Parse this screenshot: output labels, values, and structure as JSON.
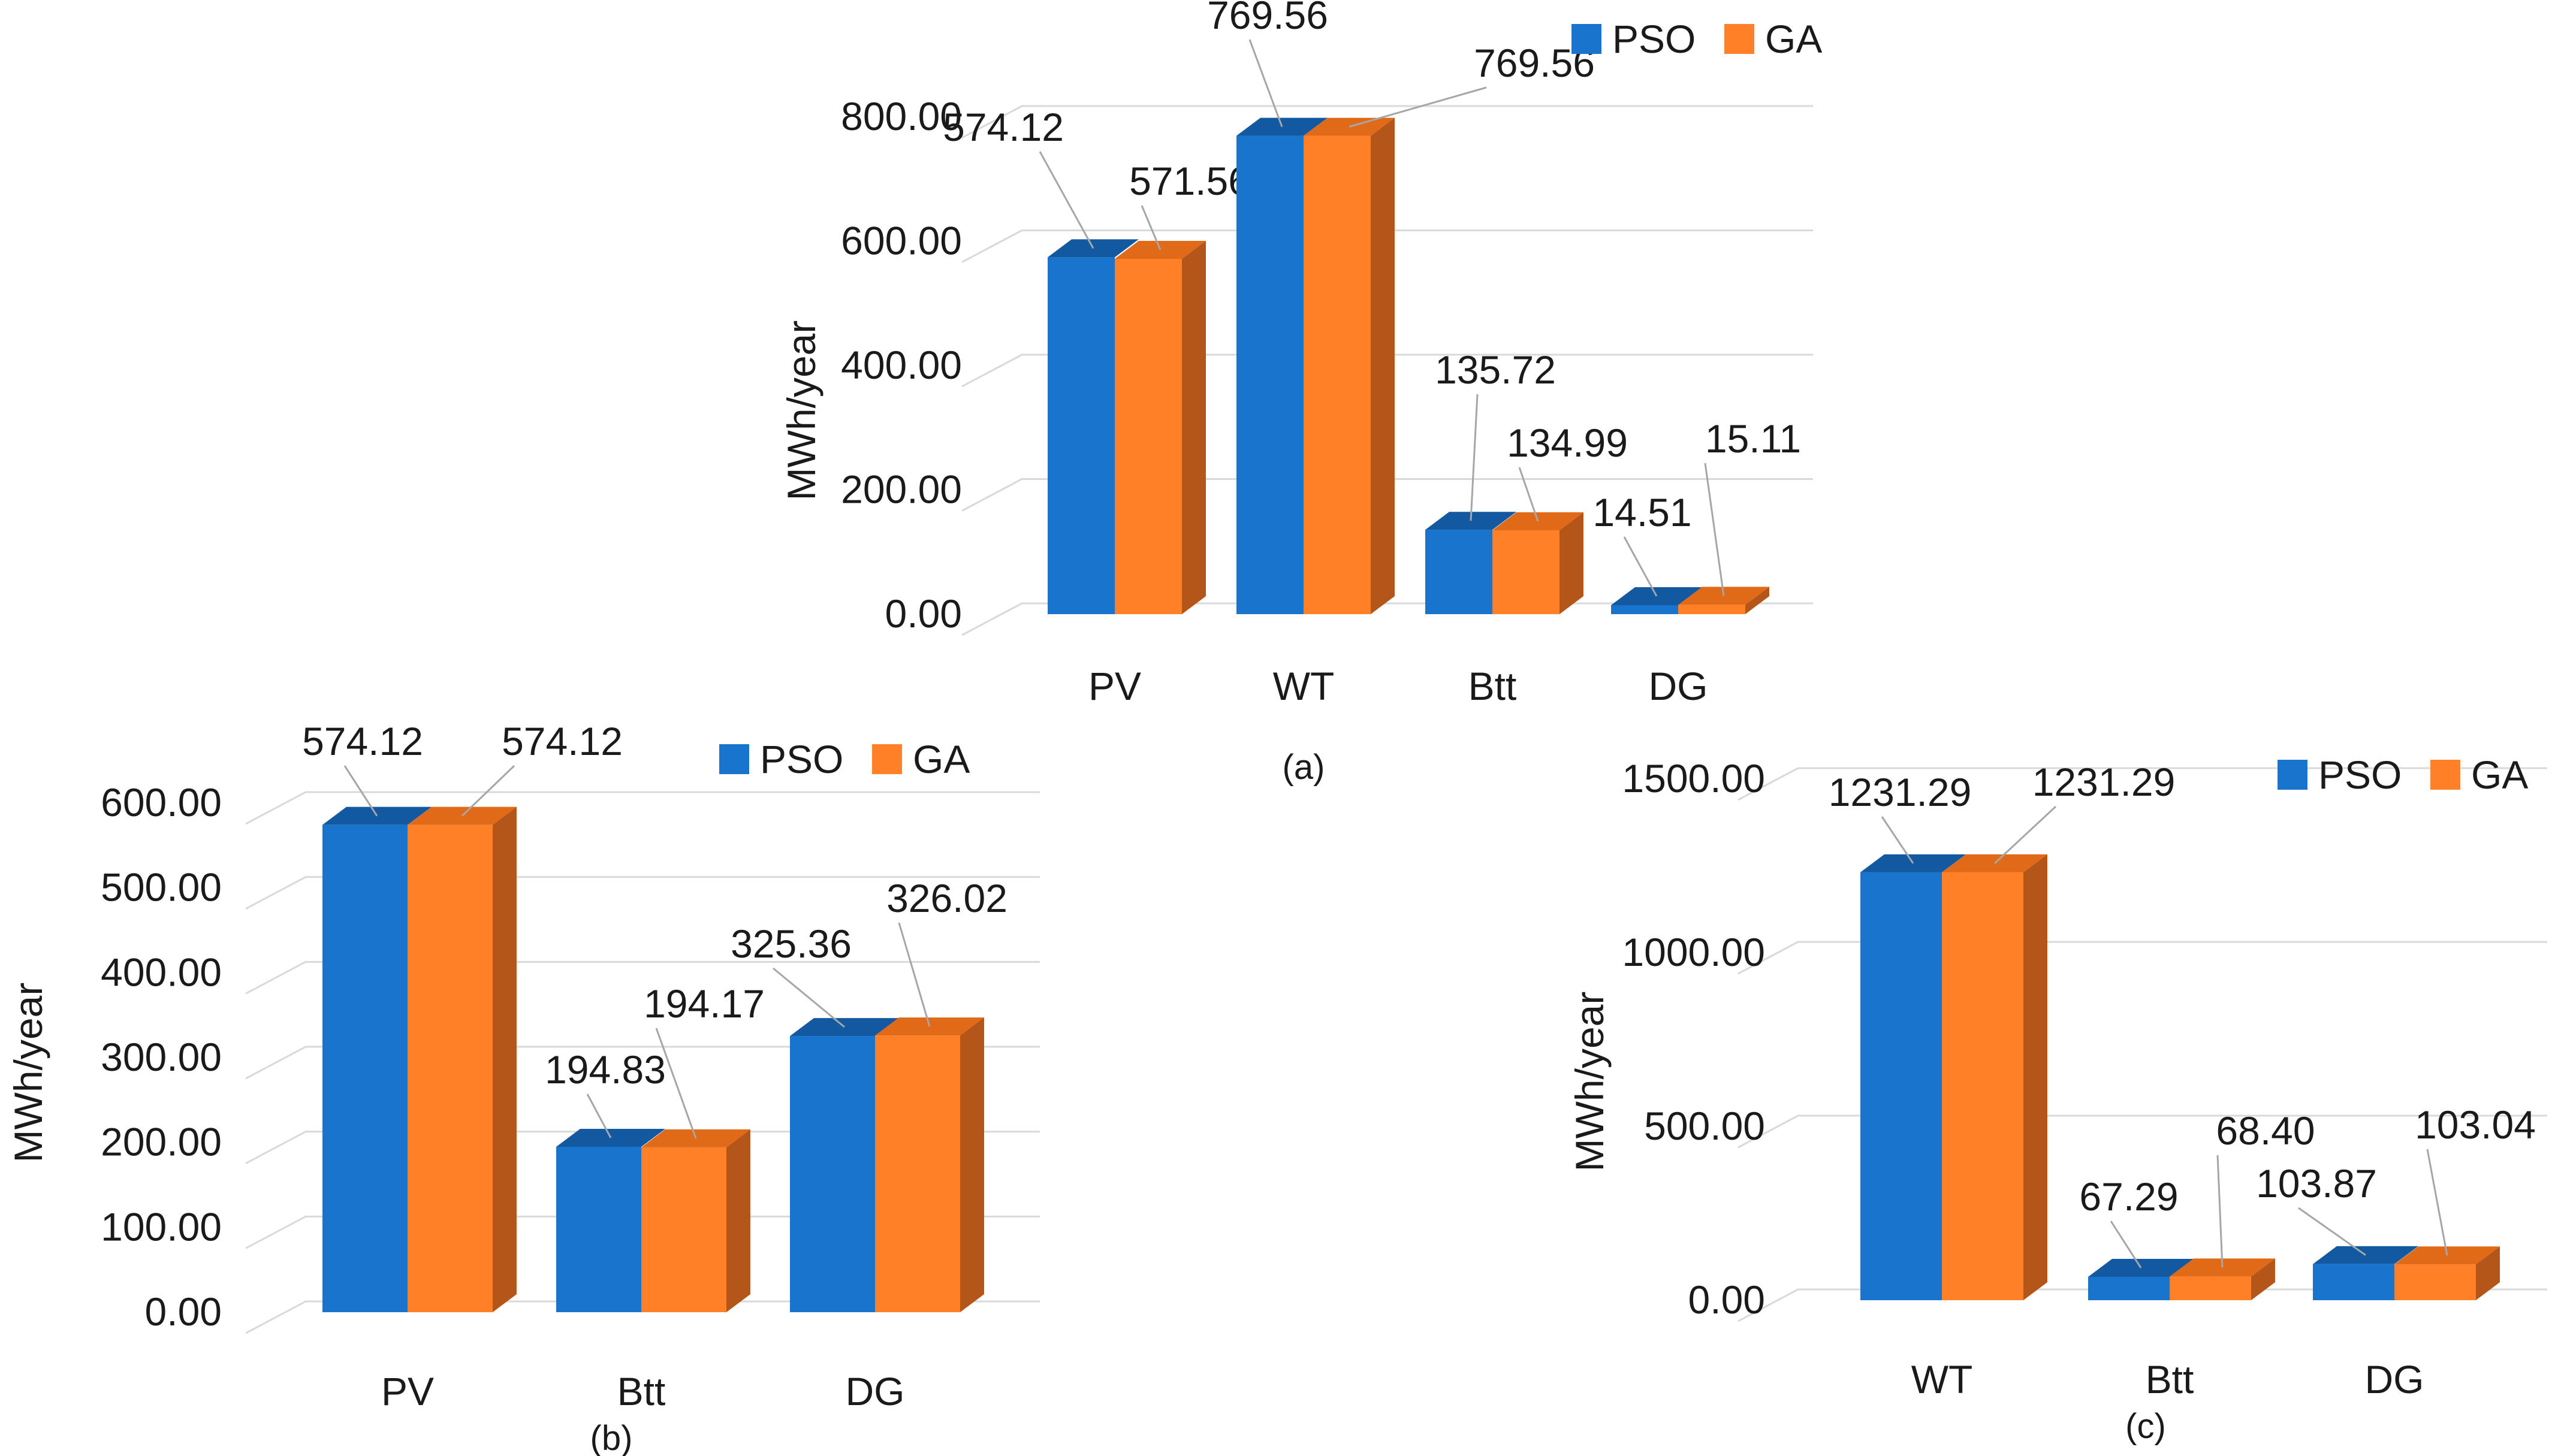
{
  "colors": {
    "pso": "#1874CD",
    "pso_top": "#1259A2",
    "pso_side": "#0F4F90",
    "ga": "#FF8027",
    "ga_top": "#E06A18",
    "ga_side": "#B4561A"
  },
  "chart_data": [
    {
      "id": "a",
      "type": "bar",
      "caption": "(a)",
      "ylabel": "MWh/year",
      "xlabel": "",
      "categories": [
        "PV",
        "WT",
        "Btt",
        "DG"
      ],
      "series": [
        {
          "name": "PSO",
          "values": [
            574.12,
            769.56,
            135.72,
            14.51
          ]
        },
        {
          "name": "GA",
          "values": [
            571.56,
            769.56,
            134.99,
            15.11
          ]
        }
      ],
      "data_labels": [
        [
          "574.12",
          "769.56",
          "135.72",
          "14.51"
        ],
        [
          "571.56",
          "769.56",
          "134.99",
          "15.11"
        ]
      ],
      "ylim": [
        0,
        800
      ],
      "yticks": [
        0,
        200,
        400,
        600,
        800
      ],
      "ytick_labels": [
        "0.00",
        "200.00",
        "400.00",
        "600.00",
        "800.00"
      ],
      "legend": [
        "PSO",
        "GA"
      ],
      "legend_position": "top-right",
      "grid": true
    },
    {
      "id": "b",
      "type": "bar",
      "caption": "(b)",
      "ylabel": "MWh/year",
      "xlabel": "",
      "categories": [
        "PV",
        "Btt",
        "DG"
      ],
      "series": [
        {
          "name": "PSO",
          "values": [
            574.12,
            194.83,
            325.36
          ]
        },
        {
          "name": "GA",
          "values": [
            574.12,
            194.17,
            326.02
          ]
        }
      ],
      "data_labels": [
        [
          "574.12",
          "194.83",
          "325.36"
        ],
        [
          "574.12",
          "194.17",
          "326.02"
        ]
      ],
      "ylim": [
        0,
        600
      ],
      "yticks": [
        0,
        100,
        200,
        300,
        400,
        500,
        600
      ],
      "ytick_labels": [
        "0.00",
        "100.00",
        "200.00",
        "300.00",
        "400.00",
        "500.00",
        "600.00"
      ],
      "legend": [
        "PSO",
        "GA"
      ],
      "legend_position": "top-right",
      "grid": true
    },
    {
      "id": "c",
      "type": "bar",
      "caption": "(c)",
      "ylabel": "MWh/year",
      "xlabel": "",
      "categories": [
        "WT",
        "Btt",
        "DG"
      ],
      "series": [
        {
          "name": "PSO",
          "values": [
            1231.29,
            67.29,
            103.87
          ]
        },
        {
          "name": "GA",
          "values": [
            1231.29,
            68.4,
            103.04
          ]
        }
      ],
      "data_labels": [
        [
          "1231.29",
          "67.29",
          "103.87"
        ],
        [
          "1231.29",
          "68.40",
          "103.04"
        ]
      ],
      "ylim": [
        0,
        1500
      ],
      "yticks": [
        0,
        500,
        1000,
        1500
      ],
      "ytick_labels": [
        "0.00",
        "500.00",
        "1000.00",
        "1500.00"
      ],
      "legend": [
        "PSO",
        "GA"
      ],
      "legend_position": "top-right",
      "grid": true
    }
  ]
}
